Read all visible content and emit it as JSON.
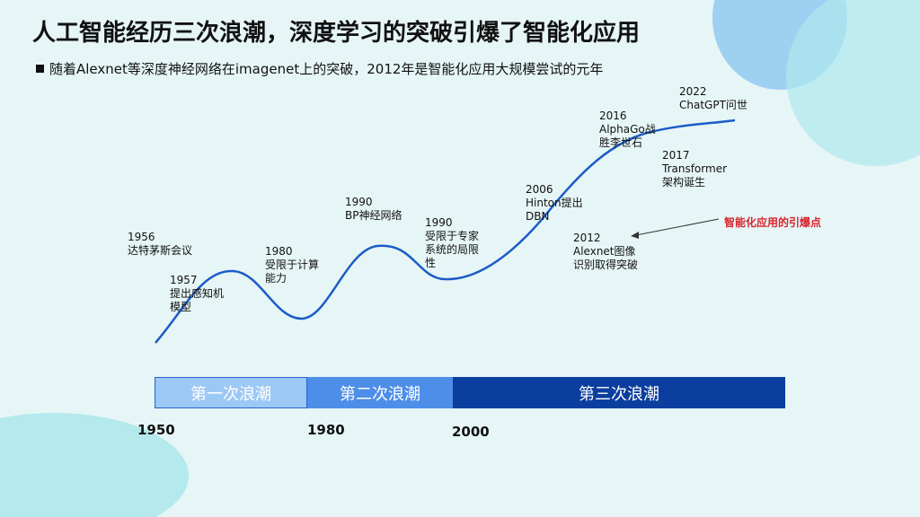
{
  "title": "人工智能经历三次浪潮，深度学习的突破引爆了智能化应用",
  "subtitle": "随着Alexnet等深度神经网络在imagenet上的突破，2012年是智能化应用大规模尝试的元年",
  "events": {
    "e1956": [
      "1956",
      "达特茅斯会议"
    ],
    "e1957": [
      "1957",
      "提出感知机",
      "模型"
    ],
    "e1980": [
      "1980",
      "受限于计算",
      "能力"
    ],
    "e1990bp": [
      "1990",
      "BP神经网络"
    ],
    "e1990lim": [
      "1990",
      "受限于专家",
      "系统的局限",
      "性"
    ],
    "e2006": [
      "2006",
      "Hinton提出",
      "DBN"
    ],
    "e2012": [
      "2012",
      "Alexnet图像",
      "识别取得突破"
    ],
    "e2016": [
      "2016",
      "AlphaGo战",
      "胜李世石"
    ],
    "e2017": [
      "2017",
      "Transformer",
      "架构诞生"
    ],
    "e2022": [
      "2022",
      "ChatGPT问世"
    ]
  },
  "callout": "智能化应用的引爆点",
  "waves": {
    "first": "第一次浪潮",
    "second": "第二次浪潮",
    "third": "第三次浪潮"
  },
  "years": {
    "y1950": "1950",
    "y1980": "1980",
    "y2000": "2000"
  },
  "colors": {
    "curve": "#1c5cc7",
    "wave1": "#9cc8f5",
    "wave2": "#4d8ee8",
    "wave3": "#0b3e9e",
    "accent": "#d9232b"
  }
}
